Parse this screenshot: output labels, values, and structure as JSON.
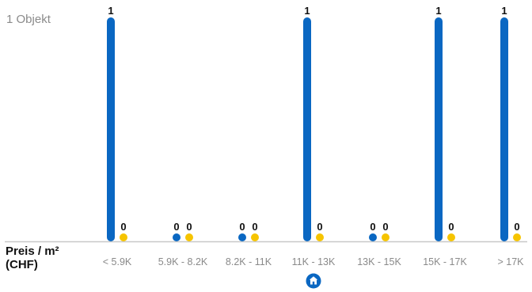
{
  "y_caption": "1 Objekt",
  "x_title_line1": "Preis / m²",
  "x_title_line2": "(CHF)",
  "home_marker_icon": "house-icon",
  "colors": {
    "series_primary": "#0a67c2",
    "series_secondary": "#f6c400",
    "axis": "#c8c8c8",
    "tick_label": "#8a8a8a",
    "value_label": "#111111"
  },
  "chart_data": {
    "type": "bar",
    "categories": [
      "< 5.9K",
      "5.9K - 8.2K",
      "8.2K - 11K",
      "11K - 13K",
      "13K - 15K",
      "15K - 17K",
      "> 17K"
    ],
    "series": [
      {
        "values": [
          1,
          0,
          0,
          1,
          0,
          1,
          1
        ]
      },
      {
        "values": [
          0,
          0,
          0,
          0,
          0,
          0,
          0
        ]
      }
    ],
    "ylim": [
      0,
      1
    ],
    "grid": false,
    "legend": "none",
    "marker_category": "11K - 13K"
  }
}
